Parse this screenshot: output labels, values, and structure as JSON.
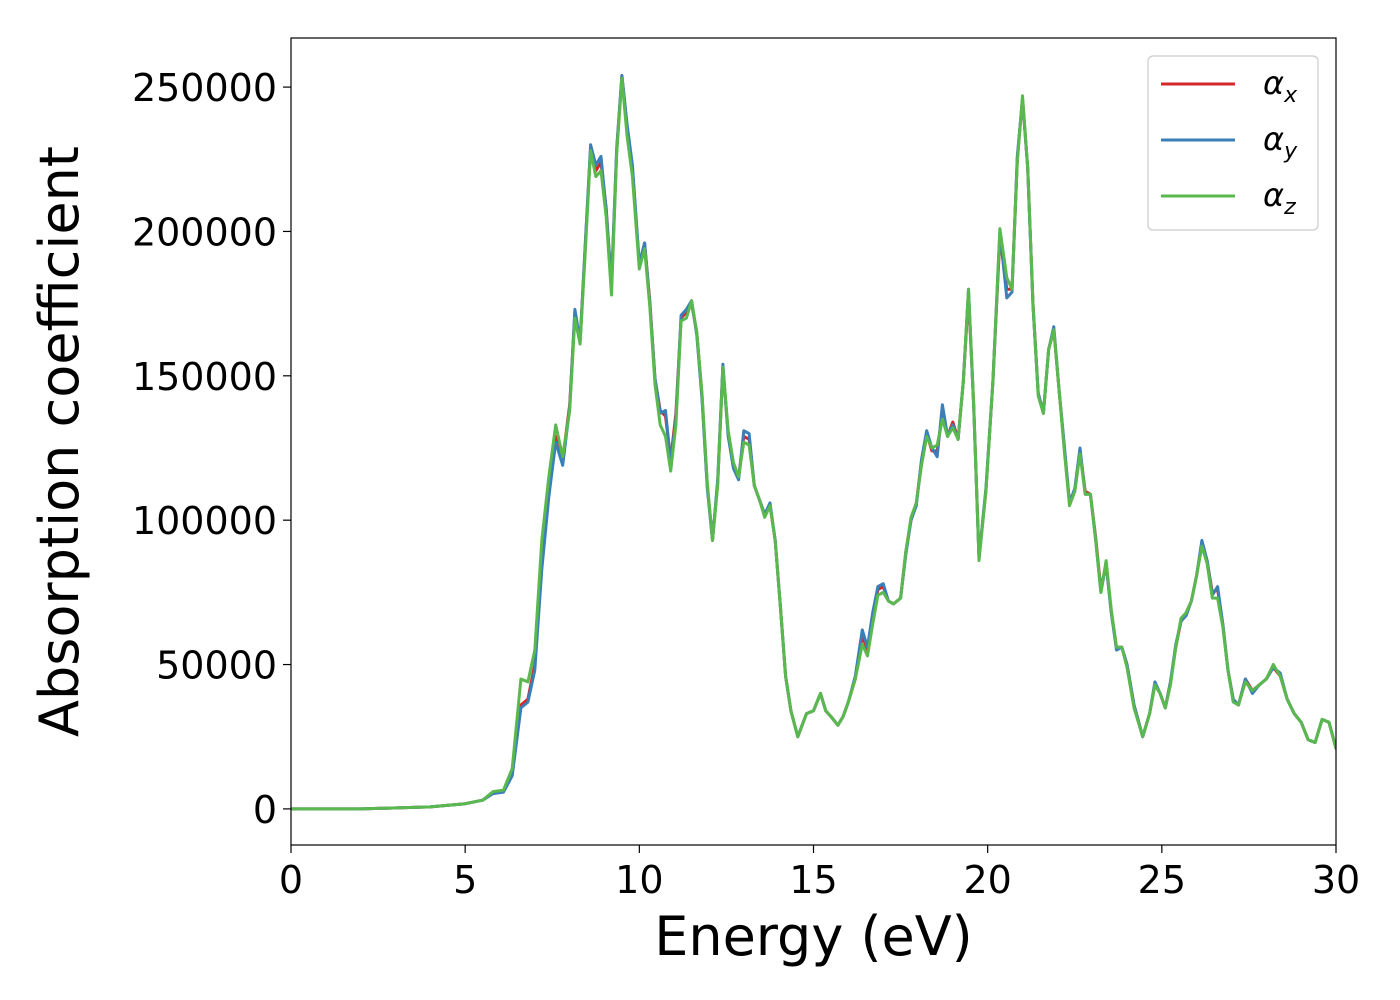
{
  "chart_data": {
    "type": "line",
    "xlabel": "Energy (eV)",
    "ylabel": "Absorption coefficient",
    "xlim": [
      0,
      30
    ],
    "ylim": [
      -12500,
      267000
    ],
    "xticks": [
      0,
      5,
      10,
      15,
      20,
      25,
      30
    ],
    "xtick_labels": [
      "0",
      "5",
      "10",
      "15",
      "20",
      "25",
      "30"
    ],
    "yticks": [
      0,
      50000,
      100000,
      150000,
      200000,
      250000
    ],
    "ytick_labels": [
      "0",
      "50000",
      "100000",
      "150000",
      "200000",
      "250000"
    ],
    "grid": false,
    "legend_position": "top-right",
    "series": [
      {
        "name": "α_x",
        "legend_symbol": "α",
        "legend_subscript": "x",
        "color": "#d62728",
        "x": [
          0,
          2,
          4,
          5,
          5.5,
          5.8,
          6.1,
          6.35,
          6.6,
          6.8,
          7.0,
          7.2,
          7.4,
          7.6,
          7.8,
          8.0,
          8.15,
          8.3,
          8.45,
          8.6,
          8.75,
          8.9,
          9.05,
          9.2,
          9.35,
          9.5,
          9.65,
          9.8,
          10.0,
          10.15,
          10.3,
          10.45,
          10.6,
          10.75,
          10.9,
          11.05,
          11.2,
          11.35,
          11.5,
          11.65,
          11.8,
          11.95,
          12.1,
          12.25,
          12.4,
          12.55,
          12.7,
          12.85,
          13.0,
          13.15,
          13.3,
          13.45,
          13.6,
          13.75,
          13.9,
          14.05,
          14.2,
          14.35,
          14.55,
          14.8,
          15.0,
          15.2,
          15.35,
          15.5,
          15.7,
          15.85,
          16.0,
          16.2,
          16.4,
          16.55,
          16.7,
          16.85,
          17.0,
          17.15,
          17.3,
          17.5,
          17.65,
          17.8,
          17.95,
          18.1,
          18.25,
          18.4,
          18.55,
          18.7,
          18.85,
          19.0,
          19.15,
          19.3,
          19.45,
          19.6,
          19.75,
          19.95,
          20.15,
          20.35,
          20.55,
          20.7,
          20.85,
          21.0,
          21.15,
          21.3,
          21.45,
          21.6,
          21.75,
          21.9,
          22.05,
          22.2,
          22.35,
          22.5,
          22.65,
          22.8,
          22.95,
          23.1,
          23.25,
          23.4,
          23.55,
          23.7,
          23.85,
          24.0,
          24.2,
          24.45,
          24.65,
          24.8,
          24.95,
          25.1,
          25.25,
          25.4,
          25.55,
          25.7,
          25.85,
          26.0,
          26.15,
          26.3,
          26.45,
          26.6,
          26.75,
          26.9,
          27.05,
          27.2,
          27.4,
          27.6,
          27.8,
          28.0,
          28.2,
          28.4,
          28.6,
          28.8,
          29.0,
          29.2,
          29.4,
          29.6,
          29.8,
          30.0
        ],
        "y": [
          0,
          0,
          700,
          1800,
          3000,
          5500,
          6000,
          12000,
          36000,
          38000,
          50000,
          85000,
          110000,
          129000,
          121000,
          140000,
          172000,
          162000,
          195000,
          229000,
          221000,
          224000,
          208000,
          181000,
          228000,
          254000,
          236000,
          222000,
          188000,
          196000,
          176000,
          149000,
          138000,
          136000,
          121000,
          137000,
          170000,
          172000,
          175000,
          165000,
          143000,
          112000,
          93000,
          113000,
          153000,
          130000,
          119000,
          115000,
          129000,
          128000,
          112000,
          107000,
          102000,
          105000,
          93000,
          70000,
          46000,
          34000,
          25000,
          33000,
          34000,
          40000,
          34000,
          32000,
          29000,
          32000,
          37000,
          45000,
          60000,
          55000,
          66000,
          76000,
          77000,
          72000,
          71000,
          73000,
          89000,
          100000,
          106000,
          120000,
          130000,
          124000,
          124000,
          137000,
          129000,
          134000,
          128000,
          148000,
          178000,
          140000,
          87000,
          110000,
          148000,
          198000,
          180000,
          180000,
          225000,
          246000,
          222000,
          175000,
          144000,
          137000,
          159000,
          166000,
          145000,
          125000,
          106000,
          110000,
          124000,
          110000,
          109000,
          94000,
          76000,
          85000,
          68000,
          56000,
          56000,
          50000,
          36000,
          25000,
          33000,
          43000,
          40000,
          35000,
          44000,
          56000,
          65000,
          68000,
          72000,
          81000,
          92000,
          86000,
          75000,
          76000,
          64000,
          48000,
          38000,
          36000,
          45000,
          41000,
          43000,
          45000,
          49000,
          46000,
          38000,
          33000,
          30000,
          24000,
          23000,
          31000,
          30000,
          21000
        ]
      },
      {
        "name": "α_y",
        "legend_symbol": "α",
        "legend_subscript": "y",
        "color": "#3a7fb8",
        "x": [
          0,
          2,
          4,
          5,
          5.5,
          5.8,
          6.1,
          6.35,
          6.6,
          6.8,
          7.0,
          7.2,
          7.4,
          7.6,
          7.8,
          8.0,
          8.15,
          8.3,
          8.45,
          8.6,
          8.75,
          8.9,
          9.05,
          9.2,
          9.35,
          9.5,
          9.65,
          9.8,
          10.0,
          10.15,
          10.3,
          10.45,
          10.6,
          10.75,
          10.9,
          11.05,
          11.2,
          11.35,
          11.5,
          11.65,
          11.8,
          11.95,
          12.1,
          12.25,
          12.4,
          12.55,
          12.7,
          12.85,
          13.0,
          13.15,
          13.3,
          13.45,
          13.6,
          13.75,
          13.9,
          14.05,
          14.2,
          14.35,
          14.55,
          14.8,
          15.0,
          15.2,
          15.35,
          15.5,
          15.7,
          15.85,
          16.0,
          16.2,
          16.4,
          16.55,
          16.7,
          16.85,
          17.0,
          17.15,
          17.3,
          17.5,
          17.65,
          17.8,
          17.95,
          18.1,
          18.25,
          18.4,
          18.55,
          18.7,
          18.85,
          19.0,
          19.15,
          19.3,
          19.45,
          19.6,
          19.75,
          19.95,
          20.15,
          20.35,
          20.55,
          20.7,
          20.85,
          21.0,
          21.15,
          21.3,
          21.45,
          21.6,
          21.75,
          21.9,
          22.05,
          22.2,
          22.35,
          22.5,
          22.65,
          22.8,
          22.95,
          23.1,
          23.25,
          23.4,
          23.55,
          23.7,
          23.85,
          24.0,
          24.2,
          24.45,
          24.65,
          24.8,
          24.95,
          25.1,
          25.25,
          25.4,
          25.55,
          25.7,
          25.85,
          26.0,
          26.15,
          26.3,
          26.45,
          26.6,
          26.75,
          26.9,
          27.05,
          27.2,
          27.4,
          27.6,
          27.8,
          28.0,
          28.2,
          28.4,
          28.6,
          28.8,
          29.0,
          29.2,
          29.4,
          29.6,
          29.8,
          30.0
        ],
        "y": [
          0,
          0,
          700,
          1800,
          3000,
          5300,
          5800,
          11500,
          35000,
          37000,
          48000,
          83000,
          108000,
          127000,
          119000,
          139000,
          173000,
          162000,
          196000,
          230000,
          223000,
          226000,
          207000,
          182000,
          229000,
          254000,
          237000,
          223000,
          189000,
          196000,
          175000,
          149000,
          137000,
          138000,
          120000,
          135000,
          171000,
          173000,
          176000,
          164000,
          142000,
          111000,
          93000,
          114000,
          154000,
          129000,
          118000,
          114000,
          131000,
          130000,
          112000,
          107000,
          102000,
          106000,
          93000,
          70000,
          46000,
          34000,
          25000,
          33000,
          34000,
          40000,
          34000,
          32000,
          29000,
          32000,
          37000,
          46000,
          62000,
          56000,
          68000,
          77000,
          78000,
          72000,
          71000,
          73000,
          88000,
          100000,
          105000,
          121000,
          131000,
          125000,
          122000,
          140000,
          129000,
          133000,
          128000,
          148000,
          180000,
          139000,
          87000,
          111000,
          148000,
          200000,
          177000,
          179000,
          226000,
          246000,
          222000,
          174000,
          144000,
          137000,
          159000,
          167000,
          145000,
          126000,
          106000,
          111000,
          125000,
          109000,
          109000,
          93000,
          75000,
          85000,
          68000,
          55000,
          56000,
          50000,
          36000,
          25000,
          33000,
          44000,
          40000,
          35000,
          44000,
          57000,
          65000,
          67000,
          72000,
          81000,
          93000,
          86000,
          74000,
          77000,
          64000,
          48000,
          38000,
          36000,
          45000,
          40000,
          43000,
          45000,
          49000,
          47000,
          38000,
          33000,
          30000,
          24000,
          23000,
          31000,
          30000,
          21000
        ]
      },
      {
        "name": "α_z",
        "legend_symbol": "α",
        "legend_subscript": "z",
        "color": "#59b94f",
        "x": [
          0,
          2,
          4,
          5,
          5.5,
          5.8,
          6.1,
          6.35,
          6.6,
          6.8,
          7.0,
          7.2,
          7.4,
          7.6,
          7.8,
          8.0,
          8.15,
          8.3,
          8.45,
          8.6,
          8.75,
          8.9,
          9.05,
          9.2,
          9.35,
          9.5,
          9.65,
          9.8,
          10.0,
          10.15,
          10.3,
          10.45,
          10.6,
          10.75,
          10.9,
          11.05,
          11.2,
          11.35,
          11.5,
          11.65,
          11.8,
          11.95,
          12.1,
          12.25,
          12.4,
          12.55,
          12.7,
          12.85,
          13.0,
          13.15,
          13.3,
          13.45,
          13.6,
          13.75,
          13.9,
          14.05,
          14.2,
          14.35,
          14.55,
          14.8,
          15.0,
          15.2,
          15.35,
          15.5,
          15.7,
          15.85,
          16.0,
          16.2,
          16.4,
          16.55,
          16.7,
          16.85,
          17.0,
          17.15,
          17.3,
          17.5,
          17.65,
          17.8,
          17.95,
          18.1,
          18.25,
          18.4,
          18.55,
          18.7,
          18.85,
          19.0,
          19.15,
          19.3,
          19.45,
          19.6,
          19.75,
          19.95,
          20.15,
          20.35,
          20.55,
          20.7,
          20.85,
          21.0,
          21.15,
          21.3,
          21.45,
          21.6,
          21.75,
          21.9,
          22.05,
          22.2,
          22.35,
          22.5,
          22.65,
          22.8,
          22.95,
          23.1,
          23.25,
          23.4,
          23.55,
          23.7,
          23.85,
          24.0,
          24.2,
          24.45,
          24.65,
          24.8,
          24.95,
          25.1,
          25.25,
          25.4,
          25.55,
          25.7,
          25.85,
          26.0,
          26.15,
          26.3,
          26.45,
          26.6,
          26.75,
          26.9,
          27.05,
          27.2,
          27.4,
          27.6,
          27.8,
          28.0,
          28.2,
          28.4,
          28.6,
          28.8,
          29.0,
          29.2,
          29.4,
          29.6,
          29.8,
          30.0
        ],
        "y": [
          0,
          0,
          700,
          1800,
          3000,
          6000,
          6500,
          14000,
          45000,
          44000,
          55000,
          93000,
          115000,
          133000,
          122000,
          138000,
          170000,
          161000,
          193000,
          228000,
          219000,
          221000,
          205000,
          178000,
          227000,
          253000,
          233000,
          219000,
          187000,
          194000,
          174000,
          147000,
          133000,
          129000,
          117000,
          133000,
          169000,
          170000,
          176000,
          165000,
          144000,
          113000,
          93000,
          112000,
          153000,
          131000,
          120000,
          115000,
          127000,
          126000,
          112000,
          107000,
          101000,
          105000,
          93000,
          70000,
          46000,
          34000,
          25000,
          33000,
          34000,
          40000,
          34000,
          32000,
          29000,
          32000,
          37000,
          45000,
          57000,
          53000,
          64000,
          74000,
          75000,
          72000,
          71000,
          73000,
          89000,
          101000,
          106000,
          119000,
          129000,
          125000,
          126000,
          135000,
          129000,
          132000,
          128000,
          148000,
          180000,
          140000,
          86000,
          110000,
          148000,
          201000,
          184000,
          180000,
          224000,
          247000,
          222000,
          175000,
          143000,
          137000,
          159000,
          166000,
          145000,
          124000,
          105000,
          110000,
          123000,
          109000,
          109000,
          93000,
          75000,
          86000,
          69000,
          56000,
          56000,
          49000,
          35000,
          25000,
          33000,
          43000,
          40000,
          35000,
          43000,
          56000,
          66000,
          68000,
          72000,
          81000,
          91000,
          85000,
          73000,
          73000,
          63000,
          48000,
          37000,
          36000,
          44000,
          41000,
          43000,
          45000,
          50000,
          46000,
          38000,
          33000,
          30000,
          24000,
          23000,
          31000,
          30000,
          21000
        ]
      }
    ]
  }
}
